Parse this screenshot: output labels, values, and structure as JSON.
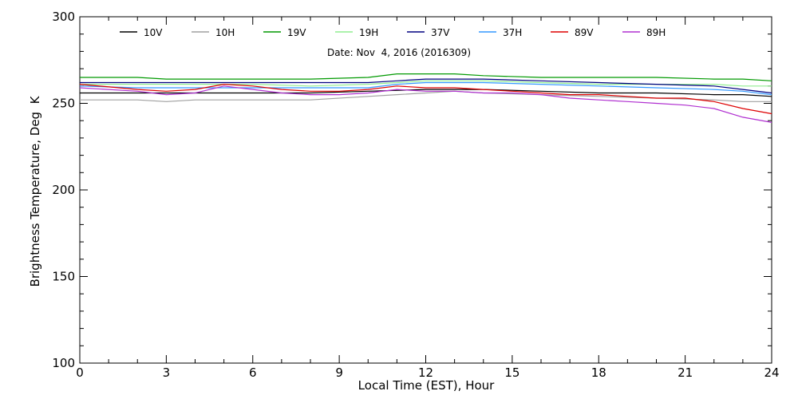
{
  "chart_data": {
    "type": "line",
    "title": "",
    "subtitle": "Date: Nov  4, 2016 (2016309)",
    "xlabel": "Local Time (EST), Hour",
    "ylabel": "Brightness Temperature, Deg  K",
    "xlim": [
      0,
      24
    ],
    "ylim": [
      100,
      300
    ],
    "xticks": [
      0,
      3,
      6,
      9,
      12,
      15,
      18,
      21,
      24
    ],
    "yticks": [
      100,
      150,
      200,
      250,
      300
    ],
    "grid": false,
    "legend_position": "top",
    "series": [
      {
        "name": "10V",
        "color": "#000000",
        "points": [
          [
            0,
            256
          ],
          [
            2,
            256
          ],
          [
            4,
            256
          ],
          [
            6,
            256
          ],
          [
            8,
            256
          ],
          [
            10,
            257
          ],
          [
            12,
            258
          ],
          [
            13,
            258
          ],
          [
            14,
            258
          ],
          [
            16,
            257
          ],
          [
            18,
            256
          ],
          [
            20,
            256
          ],
          [
            22,
            255
          ],
          [
            23,
            255
          ],
          [
            24,
            254
          ]
        ]
      },
      {
        "name": "10H",
        "color": "#a0a0a0",
        "points": [
          [
            0,
            252
          ],
          [
            2,
            252
          ],
          [
            3,
            251
          ],
          [
            4,
            252
          ],
          [
            6,
            252
          ],
          [
            8,
            252
          ],
          [
            10,
            254
          ],
          [
            11,
            255
          ],
          [
            12,
            256
          ],
          [
            13,
            257
          ],
          [
            14,
            256
          ],
          [
            16,
            255
          ],
          [
            18,
            254
          ],
          [
            20,
            253
          ],
          [
            22,
            252
          ],
          [
            23,
            251
          ],
          [
            24,
            251
          ]
        ]
      },
      {
        "name": "19V",
        "color": "#009900",
        "points": [
          [
            0,
            265
          ],
          [
            2,
            265
          ],
          [
            3,
            264
          ],
          [
            4,
            264
          ],
          [
            6,
            264
          ],
          [
            8,
            264
          ],
          [
            10,
            265
          ],
          [
            11,
            267
          ],
          [
            12,
            267
          ],
          [
            13,
            267
          ],
          [
            14,
            266
          ],
          [
            16,
            265
          ],
          [
            18,
            265
          ],
          [
            20,
            265
          ],
          [
            22,
            264
          ],
          [
            23,
            264
          ],
          [
            24,
            263
          ]
        ]
      },
      {
        "name": "19H",
        "color": "#90ee90",
        "points": [
          [
            0,
            261
          ],
          [
            2,
            261
          ],
          [
            4,
            261
          ],
          [
            6,
            261
          ],
          [
            8,
            260
          ],
          [
            10,
            261
          ],
          [
            11,
            262
          ],
          [
            12,
            263
          ],
          [
            13,
            263
          ],
          [
            14,
            263
          ],
          [
            16,
            262
          ],
          [
            18,
            261
          ],
          [
            20,
            261
          ],
          [
            22,
            261
          ],
          [
            23,
            260
          ],
          [
            24,
            260
          ]
        ]
      },
      {
        "name": "37V",
        "color": "#000080",
        "points": [
          [
            0,
            262
          ],
          [
            2,
            262
          ],
          [
            4,
            262
          ],
          [
            6,
            262
          ],
          [
            8,
            262
          ],
          [
            10,
            262
          ],
          [
            11,
            263
          ],
          [
            12,
            264
          ],
          [
            13,
            264
          ],
          [
            14,
            264
          ],
          [
            16,
            263
          ],
          [
            18,
            262
          ],
          [
            20,
            261
          ],
          [
            22,
            260
          ],
          [
            23,
            258
          ],
          [
            24,
            256
          ]
        ]
      },
      {
        "name": "37H",
        "color": "#3399ff",
        "points": [
          [
            0,
            260
          ],
          [
            2,
            259
          ],
          [
            4,
            259
          ],
          [
            6,
            259
          ],
          [
            8,
            259
          ],
          [
            10,
            259
          ],
          [
            11,
            261
          ],
          [
            12,
            262
          ],
          [
            13,
            262
          ],
          [
            14,
            262
          ],
          [
            16,
            261
          ],
          [
            18,
            260
          ],
          [
            20,
            259
          ],
          [
            22,
            258
          ],
          [
            23,
            257
          ],
          [
            24,
            255
          ]
        ]
      },
      {
        "name": "89V",
        "color": "#dd0000",
        "points": [
          [
            0,
            261
          ],
          [
            2,
            258
          ],
          [
            3,
            257
          ],
          [
            4,
            258
          ],
          [
            5,
            261
          ],
          [
            6,
            260
          ],
          [
            7,
            258
          ],
          [
            8,
            257
          ],
          [
            9,
            257
          ],
          [
            10,
            258
          ],
          [
            11,
            260
          ],
          [
            12,
            259
          ],
          [
            13,
            259
          ],
          [
            14,
            258
          ],
          [
            15,
            257
          ],
          [
            16,
            256
          ],
          [
            17,
            255
          ],
          [
            18,
            255
          ],
          [
            19,
            254
          ],
          [
            20,
            253
          ],
          [
            21,
            253
          ],
          [
            22,
            251
          ],
          [
            23,
            247
          ],
          [
            24,
            244
          ]
        ]
      },
      {
        "name": "89H",
        "color": "#b030d0",
        "points": [
          [
            0,
            259
          ],
          [
            2,
            257
          ],
          [
            3,
            255
          ],
          [
            4,
            256
          ],
          [
            5,
            260
          ],
          [
            6,
            258
          ],
          [
            7,
            256
          ],
          [
            8,
            255
          ],
          [
            9,
            255
          ],
          [
            10,
            256
          ],
          [
            11,
            258
          ],
          [
            12,
            257
          ],
          [
            13,
            257
          ],
          [
            14,
            256
          ],
          [
            15,
            256
          ],
          [
            16,
            255
          ],
          [
            17,
            253
          ],
          [
            18,
            252
          ],
          [
            19,
            251
          ],
          [
            20,
            250
          ],
          [
            21,
            249
          ],
          [
            22,
            247
          ],
          [
            23,
            242
          ],
          [
            24,
            239
          ]
        ]
      }
    ]
  }
}
